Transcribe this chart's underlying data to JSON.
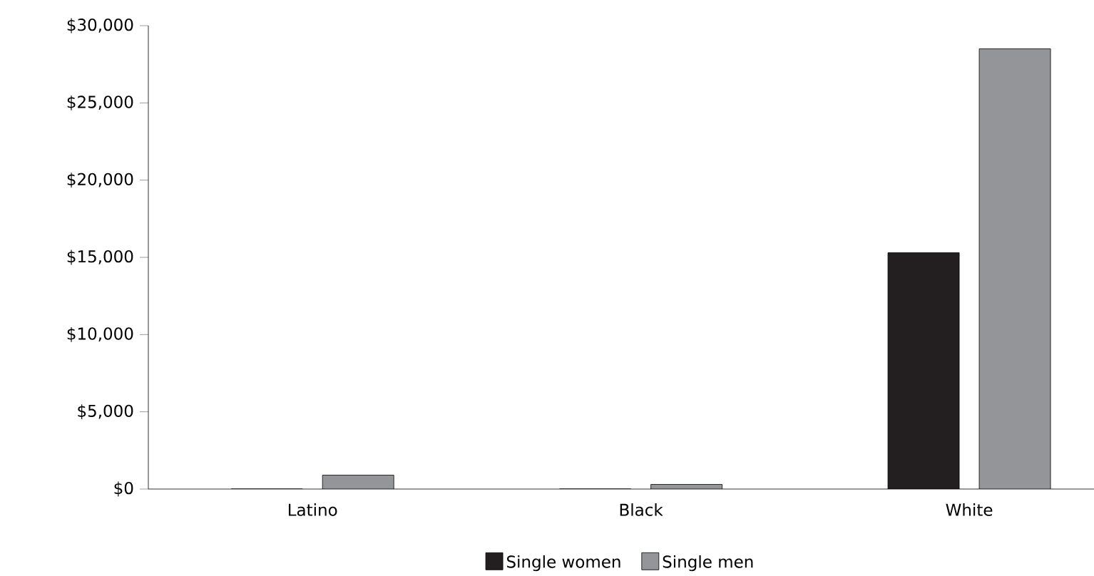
{
  "chart_data": {
    "type": "bar",
    "categories": [
      "Latino",
      "Black",
      "White"
    ],
    "series": [
      {
        "name": "Single women",
        "color": "#231f20",
        "values": [
          0,
          0,
          15300
        ]
      },
      {
        "name": "Single men",
        "color": "#939598",
        "values": [
          900,
          300,
          28500
        ]
      }
    ],
    "ylim": [
      0,
      30000
    ],
    "yticks": [
      {
        "value": 0,
        "label": "$0"
      },
      {
        "value": 5000,
        "label": "$5,000"
      },
      {
        "value": 10000,
        "label": "$10,000"
      },
      {
        "value": 15000,
        "label": "$15,000"
      },
      {
        "value": 20000,
        "label": "$20,000"
      },
      {
        "value": 25000,
        "label": "$25,000"
      },
      {
        "value": 30000,
        "label": "$30,000"
      }
    ],
    "grid": false,
    "legend": "bottom"
  }
}
